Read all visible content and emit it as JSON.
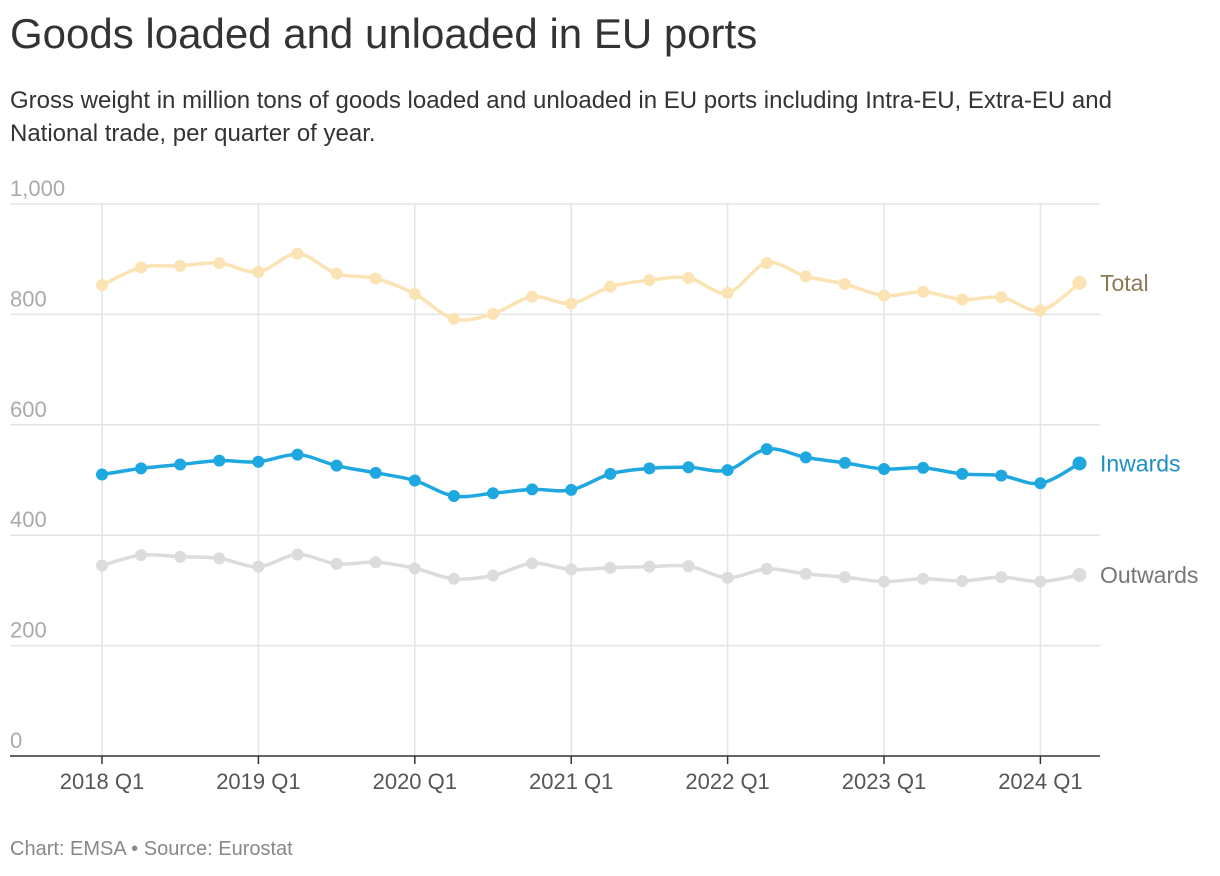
{
  "header": {
    "title": "Goods loaded and unloaded in EU ports",
    "subtitle": "Gross weight in million tons of goods loaded and unloaded in EU ports including Intra-EU, Extra-EU and National trade, per quarter of year."
  },
  "footer": {
    "chart_credit": "Chart: EMSA",
    "separator": "•",
    "source": "Source: Eurostat"
  },
  "chart_data": {
    "type": "line",
    "title": "Goods loaded and unloaded in EU ports",
    "xlabel": "",
    "ylabel": "",
    "ylim": [
      0,
      1000
    ],
    "yticks": [
      "0",
      "200",
      "400",
      "600",
      "800",
      "1,000"
    ],
    "ytick_values": [
      0,
      200,
      400,
      600,
      800,
      1000
    ],
    "xticks": [
      "2018 Q1",
      "2019 Q1",
      "2020 Q1",
      "2021 Q1",
      "2022 Q1",
      "2023 Q1",
      "2024 Q1"
    ],
    "xtick_indices": [
      0,
      4,
      8,
      12,
      16,
      20,
      24
    ],
    "categories": [
      "2018 Q1",
      "2018 Q2",
      "2018 Q3",
      "2018 Q4",
      "2019 Q1",
      "2019 Q2",
      "2019 Q3",
      "2019 Q4",
      "2020 Q1",
      "2020 Q2",
      "2020 Q3",
      "2020 Q4",
      "2021 Q1",
      "2021 Q2",
      "2021 Q3",
      "2021 Q4",
      "2022 Q1",
      "2022 Q2",
      "2022 Q3",
      "2022 Q4",
      "2023 Q1",
      "2023 Q2",
      "2023 Q3",
      "2023 Q4",
      "2024 Q1",
      "2024 Q2"
    ],
    "grid": true,
    "legend": "inline-right",
    "series": [
      {
        "name": "Total",
        "color": "#fce3b4",
        "label_color": "#8b7a55",
        "values": [
          853,
          885,
          888,
          893,
          877,
          910,
          874,
          865,
          837,
          792,
          801,
          832,
          820,
          850,
          862,
          866,
          839,
          893,
          869,
          855,
          834,
          841,
          827,
          831,
          807,
          857
        ]
      },
      {
        "name": "Inwards",
        "color": "#1fa8e0",
        "label_color": "#1d8fc4",
        "values": [
          510,
          521,
          528,
          535,
          533,
          546,
          526,
          513,
          499,
          471,
          476,
          483,
          482,
          511,
          521,
          523,
          518,
          556,
          541,
          531,
          520,
          522,
          511,
          508,
          494,
          530
        ]
      },
      {
        "name": "Outwards",
        "color": "#dcdcdc",
        "label_color": "#777777",
        "values": [
          345,
          364,
          361,
          358,
          343,
          365,
          348,
          351,
          340,
          321,
          327,
          349,
          338,
          341,
          343,
          344,
          323,
          339,
          330,
          324,
          316,
          321,
          317,
          324,
          316,
          328
        ]
      }
    ]
  }
}
